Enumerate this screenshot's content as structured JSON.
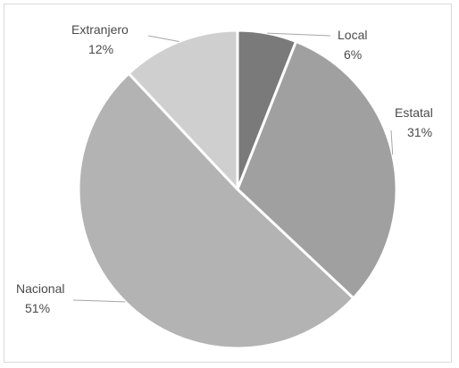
{
  "chart_data": {
    "type": "pie",
    "title": "",
    "categories": [
      "Local",
      "Estatal",
      "Nacional",
      "Extranjero"
    ],
    "values": [
      6,
      31,
      51,
      12
    ],
    "labels": [
      "6%",
      "31%",
      "51%",
      "12%"
    ],
    "colors": [
      "#7a7a7a",
      "#a0a0a0",
      "#b3b3b3",
      "#cfcfcf"
    ],
    "start_angle_deg": 0,
    "direction": "clockwise",
    "legend": "none",
    "data_labels": "outside-with-leader-lines"
  }
}
